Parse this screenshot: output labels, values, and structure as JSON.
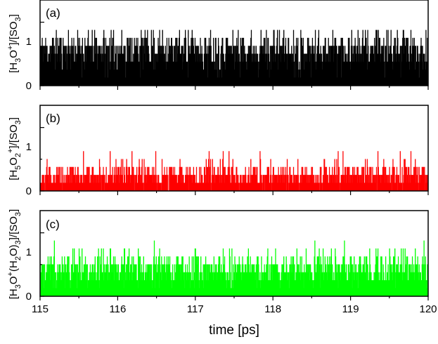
{
  "chart_data": {
    "type": "bar",
    "xlabel": "time [ps]",
    "xlim": [
      115,
      120
    ],
    "x_ticks": [
      "115",
      "116",
      "117",
      "118",
      "119",
      "120"
    ],
    "panels": [
      {
        "label": "(a)",
        "ylabel": "[H3O+]/[SO3]",
        "color": "#000000",
        "ylim": [
          0,
          1.35
        ],
        "y_ticks": [
          "0",
          "1"
        ],
        "step": 0.125,
        "seed": 11,
        "distribution": [
          [
            0.125,
            0.02
          ],
          [
            0.25,
            0.06
          ],
          [
            0.375,
            0.14
          ],
          [
            0.5,
            0.24
          ],
          [
            0.625,
            0.28
          ],
          [
            0.75,
            0.19
          ],
          [
            0.875,
            0.07
          ]
        ]
      },
      {
        "label": "(b)",
        "ylabel": "[H5O2+]/[SO3]",
        "color": "#ff0000",
        "ylim": [
          0,
          1.35
        ],
        "y_ticks": [
          "0",
          "1"
        ],
        "step": 0.125,
        "seed": 29,
        "distribution": [
          [
            0,
            0.05
          ],
          [
            0.125,
            0.27
          ],
          [
            0.25,
            0.38
          ],
          [
            0.375,
            0.24
          ],
          [
            0.5,
            0.05
          ],
          [
            0.625,
            0.01
          ]
        ]
      },
      {
        "label": "(c)",
        "ylabel": "[H3O+(H2O)3]/[SO3]",
        "color": "#00ff00",
        "ylim": [
          0,
          1.35
        ],
        "y_ticks": [
          "0",
          "1"
        ],
        "step": 0.125,
        "seed": 47,
        "distribution": [
          [
            0.125,
            0.04
          ],
          [
            0.25,
            0.17
          ],
          [
            0.375,
            0.29
          ],
          [
            0.5,
            0.29
          ],
          [
            0.625,
            0.15
          ],
          [
            0.75,
            0.05
          ],
          [
            0.875,
            0.01
          ]
        ]
      }
    ]
  }
}
